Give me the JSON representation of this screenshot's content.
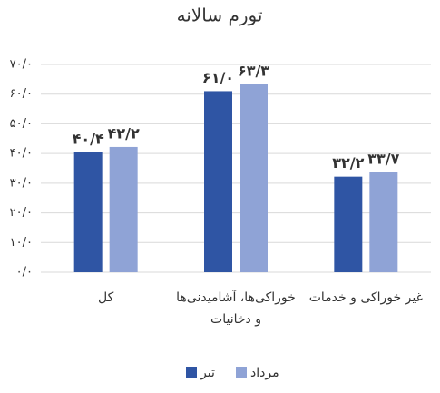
{
  "chart_data": {
    "type": "bar",
    "title": "تورم سالانه",
    "categories": [
      "کل",
      "خوراکی‌ها، آشامیدنی‌ها و دخانیات",
      "غیر خوراکی و خدمات"
    ],
    "series": [
      {
        "name": "تیر",
        "color": "#2f55a4",
        "values": [
          40.4,
          61.0,
          32.2
        ],
        "value_labels": [
          "۴۰/۴",
          "۶۱/۰",
          "۳۲/۲"
        ]
      },
      {
        "name": "مرداد",
        "color": "#8fa3d6",
        "values": [
          42.2,
          63.3,
          33.7
        ],
        "value_labels": [
          "۴۲/۲",
          "۶۳/۳",
          "۳۳/۷"
        ]
      }
    ],
    "ylim": [
      0,
      70
    ],
    "yticks": [
      {
        "value": 0,
        "label": "۰/۰"
      },
      {
        "value": 10,
        "label": "۱۰/۰"
      },
      {
        "value": 20,
        "label": "۲۰/۰"
      },
      {
        "value": 30,
        "label": "۳۰/۰"
      },
      {
        "value": 40,
        "label": "۴۰/۰"
      },
      {
        "value": 50,
        "label": "۵۰/۰"
      },
      {
        "value": 60,
        "label": "۶۰/۰"
      },
      {
        "value": 70,
        "label": "۷۰/۰"
      }
    ],
    "grid": true
  }
}
